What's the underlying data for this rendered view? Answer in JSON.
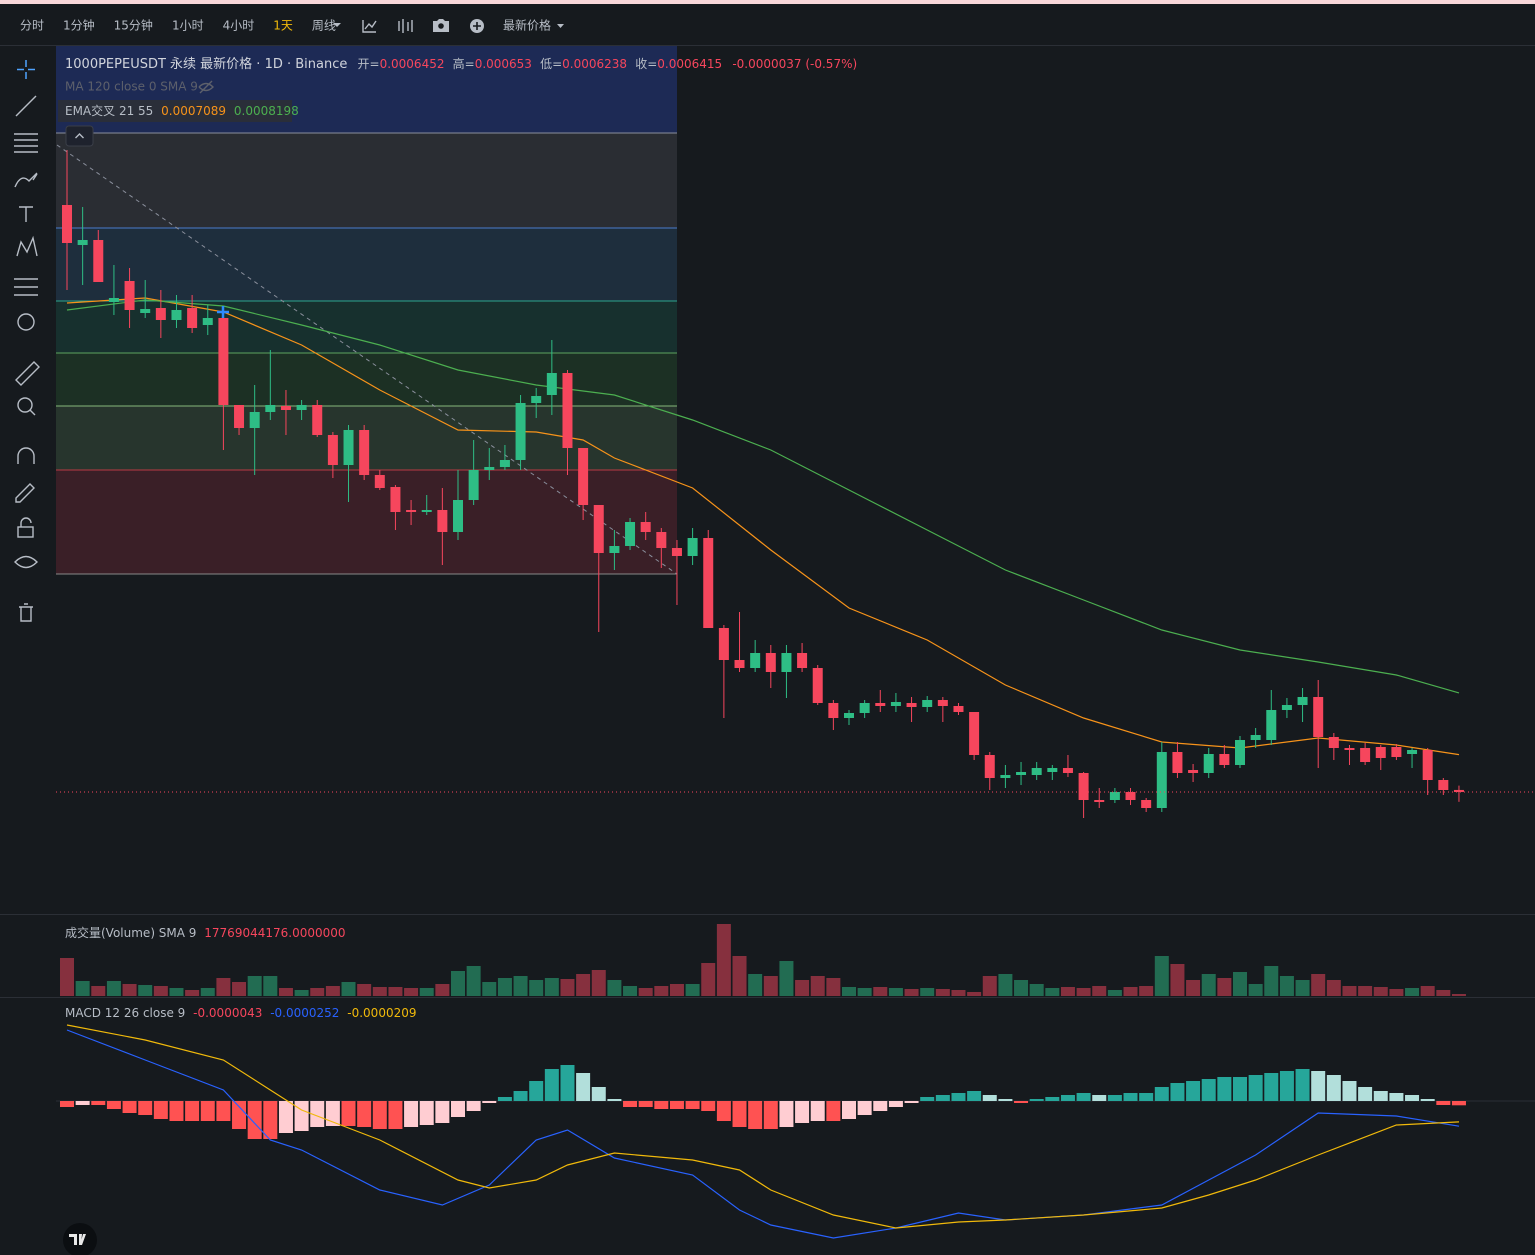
{
  "toolbar": {
    "intervals": [
      {
        "label": "分时"
      },
      {
        "label": "1分钟"
      },
      {
        "label": "15分钟"
      },
      {
        "label": "1小时"
      },
      {
        "label": "4小时"
      },
      {
        "label": "1天",
        "active": true
      },
      {
        "label": "周线"
      }
    ],
    "price_type": "最新价格"
  },
  "chart_data": [
    {
      "type": "candlestick",
      "title": "1000PEPEUSDT 永续 最新价格 · 1D · Binance",
      "ohlc_labels": [
        "开=",
        "高=",
        "低=",
        "收="
      ],
      "change_label": "-0.0000037 (-0.57%)",
      "ma_label": "MA 120 close 0 SMA 9",
      "ema_label": "EMA交叉 21 55",
      "up_color": "#2ebd85",
      "down_color": "#f6465d",
      "ylim": [
        0.0004255,
        0.0019843
      ],
      "open": [
        0.0016981,
        0.0016261,
        0.0016351,
        0.0015235,
        0.0015613,
        0.0015037,
        0.0015127,
        0.0014911,
        0.0015127,
        0.0014821,
        0.0014947,
        0.0013381,
        0.0012967,
        0.0013255,
        0.0013363,
        0.0013291,
        0.0013381,
        0.0012841,
        0.0012301,
        0.0012931,
        0.0012121,
        0.0011905,
        0.0011491,
        0.0011455,
        0.0011491,
        0.0011095,
        0.0011671,
        0.0012211,
        0.0012265,
        0.0012391,
        0.0013417,
        0.0013561,
        0.0013957,
        0.0012607,
        0.0011581,
        0.0010717,
        0.0010843,
        0.0011275,
        0.0011095,
        0.0010807,
        0.0010663,
        0.0010987,
        0.0009367,
        0.0008791,
        0.0008647,
        0.0008917,
        0.0008575,
        0.0008917,
        0.0008647,
        0.0008017,
        0.0007747,
        0.0007837,
        0.0008017,
        0.0007963,
        0.0008017,
        0.0007945,
        0.0008071,
        0.0007963,
        0.0007855,
        0.0007081,
        0.0006667,
        0.0006721,
        0.0006721,
        0.0006775,
        0.0006847,
        0.0006757,
        0.0006271,
        0.0006271,
        0.0006415,
        0.0006271,
        0.0006127,
        0.0007135,
        0.0006811,
        0.0006757,
        0.0007099,
        0.0006901,
        0.0007351,
        0.0007351,
        0.0007891,
        0.0007981,
        0.0008125,
        0.0007405,
        0.0007207,
        0.0007207,
        0.0007225,
        0.0007225,
        0.0007099,
        0.0007171,
        0.0006631,
        0.0006452
      ],
      "high": [
        0.0017971,
        0.0016945,
        0.0016531,
        0.0015901,
        0.0015847,
        0.0015631,
        0.0015451,
        0.0015361,
        0.0015361,
        0.0015181,
        0.0015127,
        0.0013381,
        0.0013741,
        0.0014371,
        0.0013651,
        0.0013471,
        0.0013471,
        0.0012895,
        0.0013021,
        0.0013021,
        0.0012211,
        0.0011941,
        0.0011671,
        0.0011761,
        0.0011887,
        0.0012211,
        0.0012751,
        0.0012607,
        0.0012661,
        0.0013561,
        0.0013687,
        0.0014551,
        0.0014011,
        0.0012607,
        0.0011581,
        0.0011131,
        0.0011347,
        0.0011455,
        0.0011167,
        0.0010951,
        0.0011167,
        0.0011131,
        0.0009421,
        0.0009655,
        0.0009151,
        0.0009061,
        0.0009061,
        0.0009097,
        0.0008701,
        0.0008071,
        0.0007891,
        0.0008071,
        0.0008251,
        0.0008197,
        0.0008125,
        0.0008143,
        0.0008125,
        0.0008017,
        0.0007855,
        0.0007135,
        0.0006901,
        0.0006955,
        0.0006955,
        0.0006901,
        0.0007081,
        0.0006775,
        0.0006487,
        0.0006487,
        0.0006487,
        0.0006307,
        0.0007315,
        0.0007315,
        0.0006919,
        0.0007207,
        0.0007261,
        0.0007423,
        0.0007567,
        0.0008251,
        0.0008107,
        0.0008287,
        0.0008431,
        0.0007477,
        0.0007261,
        0.0007297,
        0.0007261,
        0.0007279,
        0.0007207,
        0.0007207,
        0.0006667,
        0.000653
      ],
      "low": [
        0.0015451,
        0.0015541,
        0.0015595,
        0.0015001,
        0.0014767,
        0.0014947,
        0.0014587,
        0.0014767,
        0.0014677,
        0.0014641,
        0.0012571,
        0.0012841,
        0.0012121,
        0.0013111,
        0.0012841,
        0.0013111,
        0.0012805,
        0.0012067,
        0.0011635,
        0.0012031,
        0.0011851,
        0.0011131,
        0.0011221,
        0.0011401,
        0.0010501,
        0.0010951,
        0.0011581,
        0.0012031,
        0.0012211,
        0.0012211,
        0.0013147,
        0.0013201,
        0.0012121,
        0.0011311,
        0.0009295,
        0.0010411,
        0.0010771,
        0.0010951,
        0.0010447,
        0.0009781,
        0.0010501,
        0.0009367,
        0.0007747,
        0.0008575,
        0.0008575,
        0.0008287,
        0.0008107,
        0.0008575,
        0.0007981,
        0.0007531,
        0.0007621,
        0.0007747,
        0.0007855,
        0.0007855,
        0.0007675,
        0.0007855,
        0.0007675,
        0.0007801,
        0.0006991,
        0.0006451,
        0.0006487,
        0.0006541,
        0.0006631,
        0.0006631,
        0.0006685,
        0.0005947,
        0.0006127,
        0.0006217,
        0.0006181,
        0.0006055,
        0.0006055,
        0.0006667,
        0.0006595,
        0.0006667,
        0.0006847,
        0.0006847,
        0.0007207,
        0.0007261,
        0.0007747,
        0.0007675,
        0.0006847,
        0.0006991,
        0.0006901,
        0.0006901,
        0.0006811,
        0.0006991,
        0.0006847,
        0.0006361,
        0.0006361,
        0.0006238
      ],
      "close": [
        0.0016297,
        0.0016351,
        0.0015595,
        0.0015307,
        0.0015091,
        0.0015109,
        0.0014911,
        0.0015091,
        0.0014767,
        0.0014947,
        0.0013381,
        0.0012967,
        0.0013255,
        0.0013381,
        0.0013291,
        0.0013381,
        0.0012841,
        0.0012301,
        0.0012931,
        0.0012121,
        0.0011887,
        0.0011455,
        0.0011455,
        0.0011491,
        0.0011095,
        0.0011671,
        0.0012211,
        0.0012265,
        0.0012391,
        0.0013417,
        0.0013543,
        0.0013957,
        0.0012607,
        0.0011581,
        0.0010717,
        0.0010843,
        0.0011275,
        0.0011095,
        0.0010807,
        0.0010663,
        0.0010987,
        0.0009367,
        0.0008791,
        0.0008647,
        0.0008917,
        0.0008575,
        0.0008917,
        0.0008647,
        0.0008017,
        0.0007747,
        0.0007837,
        0.0008017,
        0.0007963,
        0.0008035,
        0.0007945,
        0.0008071,
        0.0007963,
        0.0007855,
        0.0007081,
        0.0006667,
        0.0006721,
        0.0006775,
        0.0006847,
        0.0006847,
        0.0006757,
        0.0006271,
        0.0006235,
        0.0006415,
        0.0006271,
        0.0006127,
        0.0007135,
        0.0006757,
        0.0006757,
        0.0007099,
        0.0006901,
        0.0007351,
        0.0007441,
        0.0007891,
        0.0007981,
        0.0008125,
        0.0007405,
        0.0007207,
        0.0007171,
        0.0006955,
        0.0007027,
        0.0007045,
        0.0007171,
        0.0006631,
        0.0006451,
        0.0006415
      ],
      "series": [
        {
          "color": "#f7931a",
          "x": [
            0,
            5,
            10,
            15,
            20,
            25,
            30,
            33,
            35,
            40,
            45,
            50,
            55,
            60,
            65,
            70,
            75,
            80,
            85,
            89
          ],
          "values": [
            0.0015217,
            0.0015307,
            0.0015055,
            0.0014461,
            0.0013651,
            0.0012931,
            0.0012895,
            0.0012751,
            0.0012427,
            0.0011887,
            0.0010771,
            0.0009727,
            0.0009151,
            0.0008341,
            0.0007747,
            0.0007315,
            0.0007207,
            0.0007387,
            0.0007261,
            0.0007089
          ]
        },
        {
          "color": "#4caf50",
          "x": [
            0,
            5,
            10,
            15,
            20,
            25,
            30,
            35,
            40,
            45,
            50,
            55,
            60,
            65,
            70,
            75,
            80,
            85,
            89
          ],
          "values": [
            0.0015091,
            0.0015271,
            0.0015163,
            0.0014821,
            0.0014461,
            0.0014011,
            0.0013741,
            0.0013561,
            0.0013111,
            0.0012571,
            0.0011851,
            0.0011131,
            0.0010411,
            0.0009871,
            0.0009331,
            0.0008971,
            0.0008755,
            0.0008521,
            0.0008198
          ]
        }
      ]
    },
    {
      "type": "bar",
      "title": "成交量(Volume) SMA 9",
      "sma": {
        "value": 17769044176,
        "label": "17769044176.0000000"
      },
      "ylim": [
        0,
        160000000000
      ],
      "values": [
        76000000000,
        30000000000,
        20000000000,
        30000000000,
        24000000000,
        22000000000,
        20000000000,
        16000000000,
        12000000000,
        16000000000,
        36000000000,
        28000000000,
        40000000000,
        40000000000,
        16000000000,
        12000000000,
        16000000000,
        20000000000,
        28000000000,
        24000000000,
        18000000000,
        18000000000,
        16000000000,
        16000000000,
        24000000000,
        50000000000,
        60000000000,
        28000000000,
        36000000000,
        40000000000,
        32000000000,
        36000000000,
        34000000000,
        44000000000,
        52000000000,
        32000000000,
        20000000000,
        16000000000,
        20000000000,
        24000000000,
        24000000000,
        66000000000,
        144000000000,
        80000000000,
        44000000000,
        40000000000,
        70000000000,
        32000000000,
        40000000000,
        36000000000,
        18000000000,
        16000000000,
        18000000000,
        16000000000,
        14000000000,
        16000000000,
        14000000000,
        12000000000,
        8000000000,
        40000000000,
        44000000000,
        32000000000,
        24000000000,
        16000000000,
        18000000000,
        16000000000,
        20000000000,
        12000000000,
        18000000000,
        20000000000,
        80000000000,
        64000000000,
        32000000000,
        44000000000,
        36000000000,
        48000000000,
        24000000000,
        60000000000,
        40000000000,
        32000000000,
        44000000000,
        32000000000,
        20000000000,
        20000000000,
        18000000000,
        14000000000,
        16000000000,
        20000000000,
        12000000000,
        4000000000
      ]
    },
    {
      "type": "macd",
      "title": "MACD 12 26 close 9",
      "ylim": [
        -0.000154,
        9.8e-05
      ],
      "hist_colors": [
        "#26a69a",
        "#b2dfdb",
        "#ff5252",
        "#ffcdd2"
      ],
      "histogram": [
        -6e-06,
        -4e-06,
        -4e-06,
        -8e-06,
        -1.2e-05,
        -1.4e-05,
        -1.8e-05,
        -2e-05,
        -2e-05,
        -2e-05,
        -2e-05,
        -2.8e-05,
        -3.8e-05,
        -3.8e-05,
        -3.2e-05,
        -3e-05,
        -2.6e-05,
        -2.5e-05,
        -2.5e-05,
        -2.6e-05,
        -2.8e-05,
        -2.8e-05,
        -2.6e-05,
        -2.4e-05,
        -2.2e-05,
        -1.6e-05,
        -1e-05,
        -2e-06,
        4e-06,
        1e-05,
        2e-05,
        3.2e-05,
        3.6e-05,
        2.8e-05,
        1.4e-05,
        2e-06,
        -6e-06,
        -6e-06,
        -8e-06,
        -8e-06,
        -8e-06,
        -1e-05,
        -2e-05,
        -2.6e-05,
        -2.8e-05,
        -2.8e-05,
        -2.6e-05,
        -2.2e-05,
        -2e-05,
        -2e-05,
        -1.8e-05,
        -1.4e-05,
        -1e-05,
        -6e-06,
        -2e-06,
        4e-06,
        6e-06,
        8e-06,
        1e-05,
        6e-06,
        2e-06,
        -2e-06,
        2e-06,
        4e-06,
        6e-06,
        8e-06,
        6e-06,
        6e-06,
        8e-06,
        8e-06,
        1.4e-05,
        1.8e-05,
        2e-05,
        2.2e-05,
        2.4e-05,
        2.4e-05,
        2.6e-05,
        2.8e-05,
        3e-05,
        3.2e-05,
        3e-05,
        2.6e-05,
        2e-05,
        1.4e-05,
        1e-05,
        8e-06,
        6e-06,
        2e-06,
        -4e-06,
        -4.3e-06
      ],
      "series": [
        {
          "color": "#2962ff",
          "x": [
            0,
            5,
            10,
            13,
            15,
            20,
            24,
            27,
            30,
            32,
            35,
            40,
            43,
            45,
            49,
            53,
            57,
            60,
            65,
            70,
            73,
            76,
            80,
            85,
            89
          ],
          "values": [
            7.1e-05,
            4.1e-05,
            1.1e-05,
            -3.9e-05,
            -4.9e-05,
            -8.9e-05,
            -0.000104,
            -8.4e-05,
            -3.9e-05,
            -2.9e-05,
            -5.7e-05,
            -7.4e-05,
            -0.000109,
            -0.000124,
            -0.000137,
            -0.000127,
            -0.000112,
            -0.000119,
            -0.000114,
            -0.000104,
            -7.9e-05,
            -5.4e-05,
            -1.2e-05,
            -1.5e-05,
            -2.52e-05
          ]
        },
        {
          "color": "#f0b90b",
          "x": [
            0,
            5,
            10,
            13,
            15,
            20,
            25,
            27,
            30,
            32,
            35,
            40,
            43,
            45,
            49,
            53,
            57,
            60,
            65,
            70,
            73,
            76,
            80,
            85,
            89
          ],
          "values": [
            7.6e-05,
            6.1e-05,
            4.1e-05,
            1.1e-05,
            -9e-06,
            -3.9e-05,
            -7.9e-05,
            -8.7e-05,
            -7.9e-05,
            -6.4e-05,
            -5.2e-05,
            -5.9e-05,
            -6.9e-05,
            -8.9e-05,
            -0.000114,
            -0.000127,
            -0.000121,
            -0.000119,
            -0.000114,
            -0.000107,
            -9.4e-05,
            -7.9e-05,
            -5.4e-05,
            -2.4e-05,
            -2.09e-05
          ]
        }
      ]
    }
  ]
}
